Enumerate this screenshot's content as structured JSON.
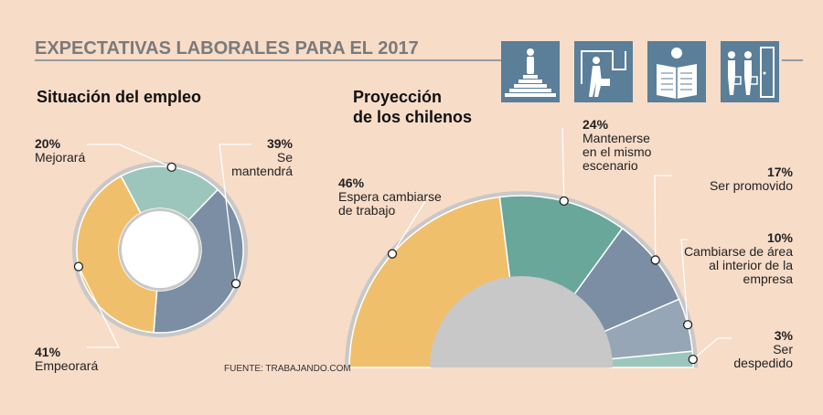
{
  "header": {
    "title": "EXPECTATIVAS LABORALES PARA EL 2017",
    "icons": [
      "person-on-podium-icon",
      "person-walking-with-briefcase-icon",
      "person-reading-newspaper-icon",
      "two-people-at-door-icon"
    ]
  },
  "source": "FUENTE: TRABAJANDO.COM",
  "colors": {
    "background": "#f7dcc8",
    "icon_tile": "#5b7e99",
    "yellow": "#f0bf6c",
    "teal": "#68a79a",
    "slate": "#7b8ea3",
    "light_slate": "#96a6b6",
    "mint": "#9cc6bc",
    "ring": "#c8c8c8"
  },
  "chart_data": [
    {
      "type": "pie",
      "title": "Situación del empleo",
      "slices": [
        {
          "pct_label": "20%",
          "label": "Mejorará",
          "value": 20,
          "color": "#9cc6bc"
        },
        {
          "pct_label": "39%",
          "label": "Se mantendrá",
          "value": 39,
          "color": "#7b8ea3"
        },
        {
          "pct_label": "41%",
          "label": "Empeorará",
          "value": 41,
          "color": "#f0bf6c"
        }
      ]
    },
    {
      "type": "pie",
      "title": "Proyección de los chilenos",
      "slices": [
        {
          "pct_label": "46%",
          "label": "Espera cambiarse de trabajo",
          "value": 46,
          "color": "#f0bf6c"
        },
        {
          "pct_label": "24%",
          "label": "Mantenerse en el mismo escenario",
          "value": 24,
          "color": "#68a79a"
        },
        {
          "pct_label": "17%",
          "label": "Ser promovido",
          "value": 17,
          "color": "#7b8ea3"
        },
        {
          "pct_label": "10%",
          "label": "Cambiarse de área al interior de la empresa",
          "value": 10,
          "color": "#96a6b6"
        },
        {
          "pct_label": "3%",
          "label": "Ser despedido",
          "value": 3,
          "color": "#9cc6bc"
        }
      ]
    }
  ]
}
